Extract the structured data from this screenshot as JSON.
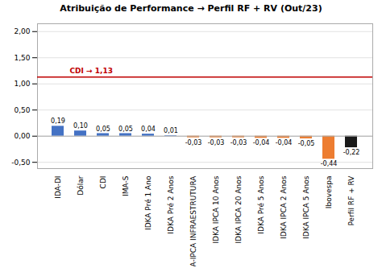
{
  "chart_data": {
    "type": "bar",
    "title": "Atribuição de Performance → Perfil RF + RV (Out/23)",
    "categories": [
      "IDA-DI",
      "Dólar",
      "CDI",
      "IMA-S",
      "IDKA Pré 1 Ano",
      "IDKA Pré 2 Anos",
      "IDA-IPCA INFRAESTRUTURA",
      "IDKA IPCA 10 Anos",
      "IDKA IPCA 20 Anos",
      "IDKA Pré 5 Anos",
      "IDKA IPCA 2 Anos",
      "IDKA IPCA 5 Anos",
      "Ibovespa",
      "Perfil RF + RV"
    ],
    "values": [
      0.19,
      0.1,
      0.05,
      0.05,
      0.04,
      0.01,
      -0.03,
      -0.03,
      -0.03,
      -0.04,
      -0.04,
      -0.05,
      -0.44,
      -0.22
    ],
    "value_labels": [
      "0,19",
      "0,10",
      "0,05",
      "0,05",
      "0,04",
      "0,01",
      "-0,03",
      "-0,03",
      "-0,03",
      "-0,04",
      "-0,04",
      "-0,05",
      "-0,44",
      "-0,22"
    ],
    "data_labels": true,
    "colors": [
      "#4472C4",
      "#4472C4",
      "#4472C4",
      "#4472C4",
      "#4472C4",
      "#4472C4",
      "#ED7D31",
      "#ED7D31",
      "#ED7D31",
      "#ED7D31",
      "#ED7D31",
      "#ED7D31",
      "#ED7D31",
      "#1a1a1a"
    ],
    "annotations": [
      {
        "type": "hline",
        "y": 1.13,
        "text": "CDI → 1,13",
        "color": "#C00000"
      }
    ],
    "ylim": [
      -0.62,
      2.15
    ],
    "yticks": [
      {
        "value": -0.5,
        "label": "-0,50"
      },
      {
        "value": 0.0,
        "label": "0,00"
      },
      {
        "value": 0.5,
        "label": "0,50"
      },
      {
        "value": 1.0,
        "label": "1,00"
      },
      {
        "value": 1.5,
        "label": "1,50"
      },
      {
        "value": 2.0,
        "label": "2,00"
      }
    ],
    "grid": true
  }
}
